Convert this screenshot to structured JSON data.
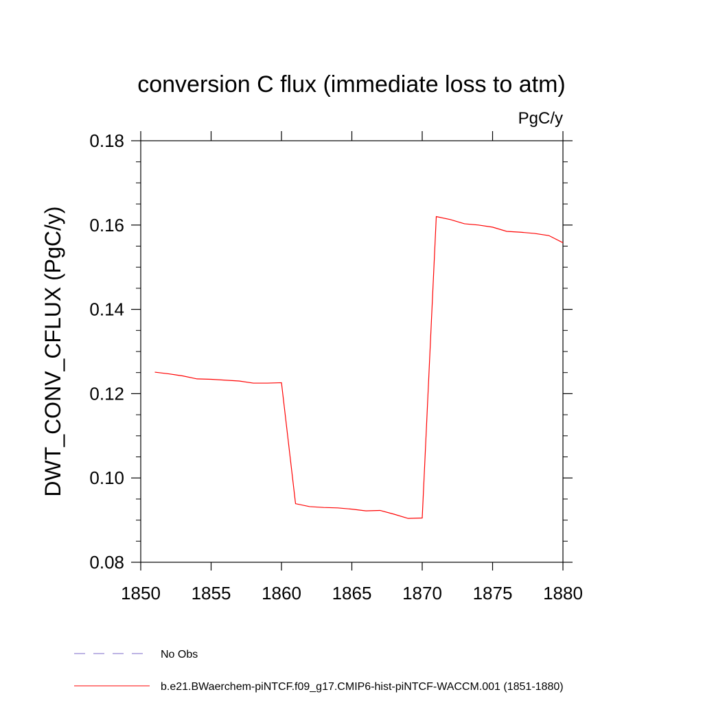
{
  "chart_data": {
    "type": "line",
    "title": "conversion C flux (immediate loss to atm)",
    "units_label": "PgC/y",
    "ylabel": "DWT_CONV_CFLUX  (PgC/y)",
    "xlabel": "",
    "xlim": [
      1850,
      1880
    ],
    "ylim": [
      0.08,
      0.18
    ],
    "x_ticks": [
      1850,
      1855,
      1860,
      1865,
      1870,
      1875,
      1880
    ],
    "x_tick_labels": [
      "1850",
      "1855",
      "1860",
      "1865",
      "1870",
      "1875",
      "1880"
    ],
    "y_ticks": [
      0.08,
      0.1,
      0.12,
      0.14,
      0.16,
      0.18
    ],
    "y_tick_labels": [
      "0.08",
      "0.10",
      "0.12",
      "0.14",
      "0.16",
      "0.18"
    ],
    "grid": false,
    "legend_position": "bottom-left",
    "series": [
      {
        "name": "No Obs",
        "color": "#7b68c8",
        "dash": "dashed",
        "x": [],
        "y": []
      },
      {
        "name": "b.e21.BWaerchem-piNTCF.f09_g17.CMIP6-hist-piNTCF-WACCM.001 (1851-1880)",
        "color": "#ff0000",
        "dash": "solid",
        "x": [
          1851,
          1852,
          1853,
          1854,
          1855,
          1856,
          1857,
          1858,
          1859,
          1860,
          1861,
          1862,
          1863,
          1864,
          1865,
          1866,
          1867,
          1868,
          1869,
          1870,
          1871,
          1872,
          1873,
          1874,
          1875,
          1876,
          1877,
          1878,
          1879,
          1880
        ],
        "y": [
          0.1251,
          0.1247,
          0.1242,
          0.1235,
          0.1234,
          0.1232,
          0.123,
          0.1225,
          0.1225,
          0.1226,
          0.0939,
          0.0932,
          0.093,
          0.0929,
          0.0926,
          0.0922,
          0.0923,
          0.0914,
          0.0904,
          0.0905,
          0.162,
          0.1613,
          0.1603,
          0.16,
          0.1595,
          0.1585,
          0.1583,
          0.158,
          0.1575,
          0.1558
        ]
      }
    ]
  }
}
